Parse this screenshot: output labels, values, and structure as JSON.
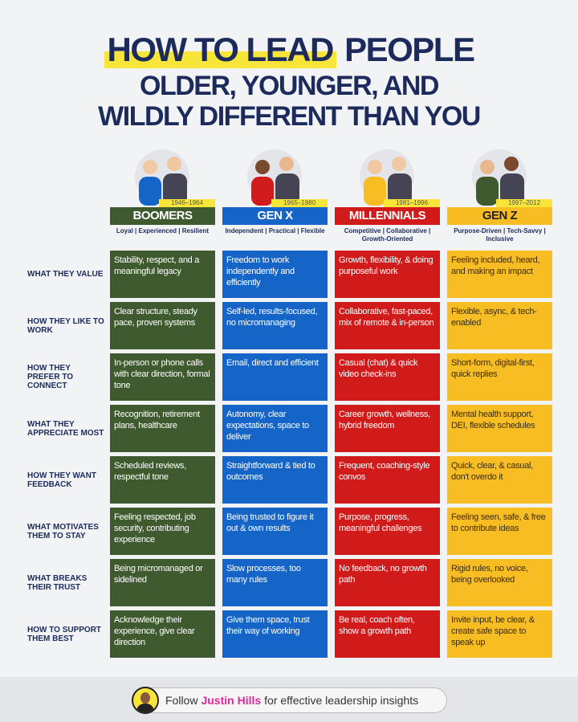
{
  "title": {
    "line1_highlight": "HOW TO LEAD",
    "line1_rest": "PEOPLE",
    "line2": "OLDER, YOUNGER, AND",
    "line3": "WILDLY DIFFERENT THAN YOU"
  },
  "colors": {
    "boomers": "#3f5a2e",
    "genx": "#1565c8",
    "millennials": "#d11b1b",
    "genz": "#f8bd22",
    "title": "#1c2b5c"
  },
  "generations": [
    {
      "name": "BOOMERS",
      "years": "1946–1964",
      "traits": "Loyal | Experienced | Resilient"
    },
    {
      "name": "GEN X",
      "years": "1965–1980",
      "traits": "Independent | Practical | Flexible"
    },
    {
      "name": "MILLENNIALS",
      "years": "1981–1996",
      "traits": "Competitive | Collaborative | Growth-Oriented"
    },
    {
      "name": "GEN Z",
      "years": "1997–2012",
      "traits": "Purpose-Driven | Tech-Savvy | Inclusive"
    }
  ],
  "rows": [
    {
      "label": "WHAT THEY VALUE",
      "cells": [
        "Stability, respect, and a meaningful legacy",
        "Freedom to work independently and efficiently",
        "Growth, flexibility, & doing purposeful work",
        "Feeling included, heard, and making an impact"
      ]
    },
    {
      "label": "HOW THEY LIKE TO WORK",
      "cells": [
        "Clear structure, steady pace, proven systems",
        "Self-led, results-focused, no micromanaging",
        "Collaborative, fast-paced, mix of remote & in-person",
        "Flexible, async, & tech-enabled"
      ]
    },
    {
      "label": "HOW THEY PREFER TO CONNECT",
      "cells": [
        "In-person or phone calls with clear direction, formal tone",
        "Email, direct and efficient",
        "Casual (chat) & quick video check-ins",
        "Short-form, digital-first, quick replies"
      ]
    },
    {
      "label": "WHAT THEY APPRECIATE MOST",
      "cells": [
        "Recognition, retirement plans, healthcare",
        "Autonomy, clear expectations, space to deliver",
        "Career growth, wellness, hybrid freedom",
        "Mental health support, DEI, flexible schedules"
      ]
    },
    {
      "label": "HOW THEY WANT FEEDBACK",
      "cells": [
        "Scheduled reviews, respectful tone",
        "Straightforward & tied to outcomes",
        "Frequent, coaching-style convos",
        "Quick, clear, & casual, don't overdo it"
      ]
    },
    {
      "label": "WHAT MOTIVATES THEM TO STAY",
      "cells": [
        "Feeling respected, job security, contributing experience",
        "Being trusted to figure it out & own results",
        "Purpose, progress, meaningful challenges",
        "Feeling seen, safe, & free to contribute ideas"
      ]
    },
    {
      "label": "WHAT BREAKS THEIR TRUST",
      "cells": [
        "Being micromanaged or sidelined",
        "Slow processes, too many rules",
        "No feedback, no growth path",
        "Rigid rules, no voice, being overlooked"
      ]
    },
    {
      "label": "HOW TO SUPPORT THEM BEST",
      "cells": [
        "Acknowledge their experience, give clear direction",
        "Give them space, trust their way of working",
        "Be real, coach often, show a growth path",
        "Invite input, be clear, & create safe space to speak up"
      ]
    }
  ],
  "footer": {
    "prefix": "Follow",
    "name": "Justin Hills",
    "suffix": "for effective leadership insights"
  }
}
